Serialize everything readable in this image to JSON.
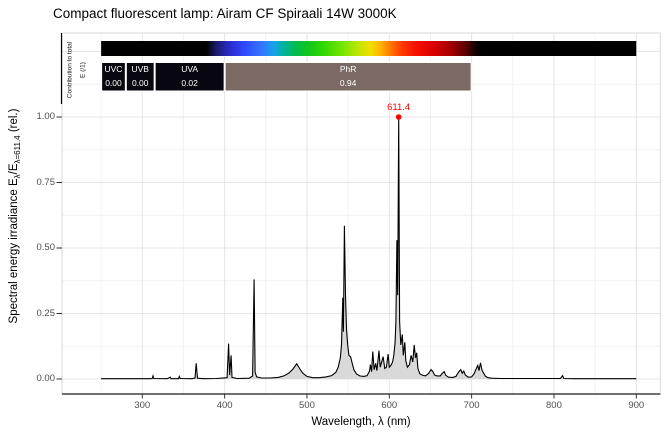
{
  "title": "Compact fluorescent lamp: Airam CF Spiraali 14W 3000K",
  "axes": {
    "x": {
      "label": "Wavelength, λ (nm)",
      "tick_labels": [
        "300",
        "400",
        "500",
        "600",
        "700",
        "800",
        "900"
      ],
      "tick_values": [
        300,
        400,
        500,
        600,
        700,
        800,
        900
      ],
      "minor_tick_values": [
        250,
        350,
        450,
        550,
        650,
        750,
        850
      ]
    },
    "y": {
      "label_parts": [
        "Spectral  energy  irradiance  E",
        "λ",
        "/E",
        "λ=611.4",
        " (rel.)"
      ],
      "tick_labels": [
        "0.00",
        "0.25",
        "0.50",
        "0.75",
        "1.00"
      ],
      "tick_values": [
        0,
        0.25,
        0.5,
        0.75,
        1.0
      ],
      "minor_tick_values": [
        0.125,
        0.375,
        0.625,
        0.875,
        1.125
      ],
      "extra_major_values": [
        1.25
      ]
    }
  },
  "strip": {
    "label_line1": "Contribution to total",
    "label_line2": "E (/1)"
  },
  "peak": {
    "label": "611.4"
  },
  "chart_data": {
    "type": "area",
    "title": "Compact fluorescent lamp: Airam CF Spiraali 14W 3000K",
    "xlabel": "Wavelength, λ (nm)",
    "ylabel": "Spectral energy irradiance Eλ/Eλ=611.4 (rel.)",
    "xlim": [
      200,
      930
    ],
    "ylim": [
      -0.05,
      1.32
    ],
    "x_ticks": [
      300,
      400,
      500,
      600,
      700,
      800,
      900
    ],
    "y_ticks": [
      0,
      0.25,
      0.5,
      0.75,
      1.0
    ],
    "grid": "on",
    "fill_color": "#d9d9d9",
    "line_color": "#000000",
    "peak": {
      "wavelength": 611.4,
      "value": 1.0,
      "label": "611.4",
      "color": "#ff0000"
    },
    "wavebands": [
      {
        "label": "UVC",
        "value": "0.00",
        "from": 250,
        "to": 280,
        "color": "#08060f",
        "text_color": "#ffffff"
      },
      {
        "label": "UVB",
        "value": "0.00",
        "from": 280,
        "to": 315,
        "color": "#08060f",
        "text_color": "#ffffff"
      },
      {
        "label": "UVA",
        "value": "0.02",
        "from": 315,
        "to": 400,
        "color": "#08060f",
        "text_color": "#ffffff"
      },
      {
        "label": "PhR",
        "value": "0.94",
        "from": 400,
        "to": 700,
        "color": "#7b6a63",
        "text_color": "#ffffff"
      }
    ],
    "colorbar": {
      "from": 250,
      "to": 900,
      "stops": [
        [
          250,
          "#000000"
        ],
        [
          378,
          "#000000"
        ],
        [
          390,
          "#1b1b6b"
        ],
        [
          405,
          "#2929c8"
        ],
        [
          425,
          "#2e4bff"
        ],
        [
          445,
          "#3575ff"
        ],
        [
          460,
          "#15a3e8"
        ],
        [
          472,
          "#00b39b"
        ],
        [
          485,
          "#00ba55"
        ],
        [
          500,
          "#0fc41f"
        ],
        [
          520,
          "#30d800"
        ],
        [
          545,
          "#7ce600"
        ],
        [
          565,
          "#c8e600"
        ],
        [
          578,
          "#f5dc00"
        ],
        [
          590,
          "#ffb000"
        ],
        [
          602,
          "#ff7300"
        ],
        [
          615,
          "#ff3a00"
        ],
        [
          632,
          "#f51000"
        ],
        [
          655,
          "#d90000"
        ],
        [
          675,
          "#a30000"
        ],
        [
          692,
          "#5e0000"
        ],
        [
          703,
          "#1c0000"
        ],
        [
          710,
          "#000000"
        ],
        [
          900,
          "#000000"
        ]
      ]
    },
    "series": [
      {
        "name": "spectral_energy_irradiance_rel",
        "points": [
          [
            250,
            0.001
          ],
          [
            300,
            0.001
          ],
          [
            310,
            0.001
          ],
          [
            312,
            0.002
          ],
          [
            313,
            0.012
          ],
          [
            314,
            0.002
          ],
          [
            330,
            0.001
          ],
          [
            334,
            0.007
          ],
          [
            335,
            0.001
          ],
          [
            344,
            0.001
          ],
          [
            345,
            0.01
          ],
          [
            346,
            0.002
          ],
          [
            360,
            0.001
          ],
          [
            364,
            0.004
          ],
          [
            365.5,
            0.06
          ],
          [
            367,
            0.003
          ],
          [
            375,
            0.001
          ],
          [
            390,
            0.002
          ],
          [
            403,
            0.005
          ],
          [
            404.8,
            0.135
          ],
          [
            406,
            0.015
          ],
          [
            407.8,
            0.09
          ],
          [
            409,
            0.006
          ],
          [
            415,
            0.002
          ],
          [
            430,
            0.003
          ],
          [
            434,
            0.012
          ],
          [
            435.8,
            0.38
          ],
          [
            437,
            0.025
          ],
          [
            439,
            0.008
          ],
          [
            445,
            0.004
          ],
          [
            455,
            0.004
          ],
          [
            465,
            0.006
          ],
          [
            472,
            0.012
          ],
          [
            478,
            0.022
          ],
          [
            483,
            0.038
          ],
          [
            487.5,
            0.058
          ],
          [
            491,
            0.04
          ],
          [
            495,
            0.022
          ],
          [
            500,
            0.01
          ],
          [
            507,
            0.005
          ],
          [
            515,
            0.005
          ],
          [
            523,
            0.008
          ],
          [
            530,
            0.013
          ],
          [
            535,
            0.025
          ],
          [
            538,
            0.045
          ],
          [
            540.5,
            0.08
          ],
          [
            542,
            0.13
          ],
          [
            543.5,
            0.31
          ],
          [
            544.3,
            0.18
          ],
          [
            545.5,
            0.585
          ],
          [
            546.8,
            0.32
          ],
          [
            548,
            0.19
          ],
          [
            549.5,
            0.13
          ],
          [
            551,
            0.09
          ],
          [
            553,
            0.085
          ],
          [
            555,
            0.06
          ],
          [
            557,
            0.035
          ],
          [
            560,
            0.02
          ],
          [
            564,
            0.012
          ],
          [
            569,
            0.01
          ],
          [
            573,
            0.013
          ],
          [
            576,
            0.03
          ],
          [
            577,
            0.055
          ],
          [
            578.5,
            0.028
          ],
          [
            580,
            0.105
          ],
          [
            581.5,
            0.035
          ],
          [
            583.5,
            0.06
          ],
          [
            585,
            0.032
          ],
          [
            587.5,
            0.108
          ],
          [
            589,
            0.045
          ],
          [
            592.5,
            0.085
          ],
          [
            594.5,
            0.04
          ],
          [
            596.5,
            0.045
          ],
          [
            598.5,
            0.095
          ],
          [
            600,
            0.045
          ],
          [
            602,
            0.052
          ],
          [
            604,
            0.065
          ],
          [
            605.5,
            0.09
          ],
          [
            607,
            0.14
          ],
          [
            608,
            0.22
          ],
          [
            609.3,
            0.53
          ],
          [
            610.2,
            0.32
          ],
          [
            611.4,
            1.0
          ],
          [
            612.5,
            0.22
          ],
          [
            614,
            0.13
          ],
          [
            615.8,
            0.17
          ],
          [
            617,
            0.09
          ],
          [
            618.8,
            0.14
          ],
          [
            620,
            0.07
          ],
          [
            622,
            0.045
          ],
          [
            624.5,
            0.055
          ],
          [
            626.5,
            0.09
          ],
          [
            628.5,
            0.065
          ],
          [
            630.3,
            0.13
          ],
          [
            631.8,
            0.08
          ],
          [
            633.3,
            0.1
          ],
          [
            634.8,
            0.04
          ],
          [
            637,
            0.02
          ],
          [
            640,
            0.015
          ],
          [
            644,
            0.012
          ],
          [
            648,
            0.022
          ],
          [
            650.8,
            0.036
          ],
          [
            653,
            0.028
          ],
          [
            655,
            0.015
          ],
          [
            658,
            0.012
          ],
          [
            662,
            0.012
          ],
          [
            664.5,
            0.022
          ],
          [
            666.8,
            0.028
          ],
          [
            668.5,
            0.014
          ],
          [
            672,
            0.007
          ],
          [
            677,
            0.006
          ],
          [
            681,
            0.01
          ],
          [
            684,
            0.026
          ],
          [
            686.8,
            0.036
          ],
          [
            688.5,
            0.022
          ],
          [
            690.5,
            0.03
          ],
          [
            692.5,
            0.015
          ],
          [
            696,
            0.007
          ],
          [
            700,
            0.008
          ],
          [
            703,
            0.02
          ],
          [
            705.5,
            0.038
          ],
          [
            707.5,
            0.052
          ],
          [
            709,
            0.032
          ],
          [
            710.8,
            0.062
          ],
          [
            712.5,
            0.035
          ],
          [
            714.5,
            0.022
          ],
          [
            717,
            0.01
          ],
          [
            720,
            0.005
          ],
          [
            724,
            0.003
          ],
          [
            735,
            0.002
          ],
          [
            755,
            0.002
          ],
          [
            775,
            0.002
          ],
          [
            795,
            0.002
          ],
          [
            808,
            0.002
          ],
          [
            810.5,
            0.013
          ],
          [
            812,
            0.002
          ],
          [
            825,
            0.001
          ],
          [
            850,
            0.001
          ],
          [
            875,
            0.001
          ],
          [
            900,
            0.001
          ]
        ]
      }
    ],
    "legend": "none"
  },
  "colors": {
    "grid_major": "#e4e4e4",
    "grid_minor": "#f1f1f1",
    "panel_border": "#d9d9d9",
    "axis_line": "#1a1a1a",
    "tick": "#333333",
    "tick_label": "#4d4d4d",
    "peak_red": "#ff0000"
  }
}
